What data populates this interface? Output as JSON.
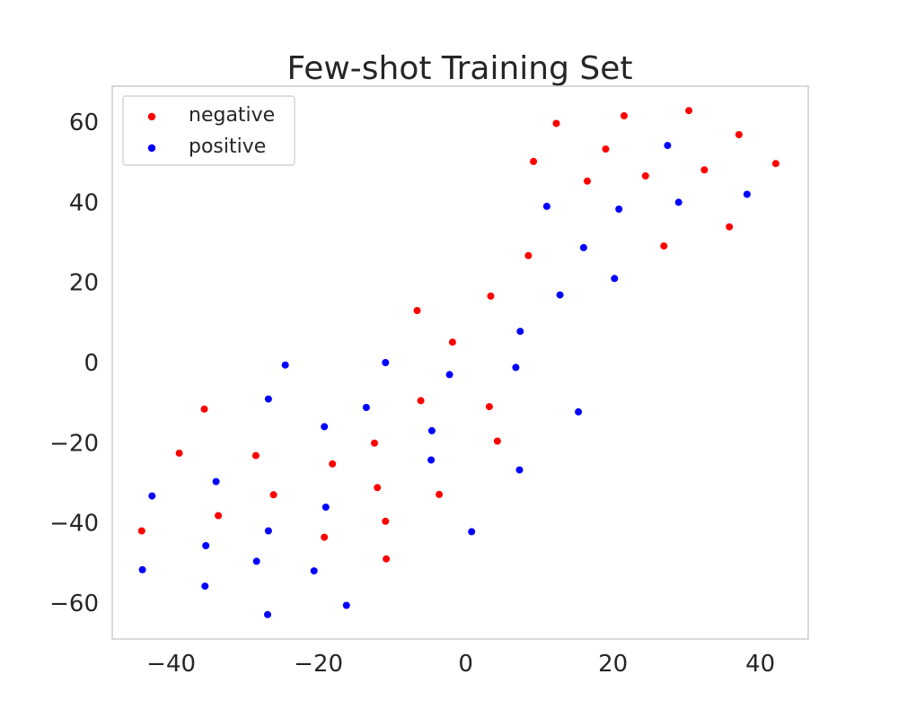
{
  "chart_data": {
    "type": "scatter",
    "title": "Few-shot Training Set",
    "xlabel": "",
    "ylabel": "",
    "xlim": [
      -48,
      46.5
    ],
    "ylim": [
      -69,
      69
    ],
    "xticks": [
      -40,
      -20,
      0,
      20,
      40
    ],
    "yticks": [
      -60,
      -40,
      -20,
      0,
      20,
      40,
      60
    ],
    "xtick_labels": [
      "−40",
      "−20",
      "0",
      "20",
      "40"
    ],
    "ytick_labels": [
      "−60",
      "−40",
      "−20",
      "0",
      "20",
      "40",
      "60"
    ],
    "grid": false,
    "legend_position": "top-left",
    "series": [
      {
        "name": "negative",
        "color": "#ff0000",
        "points": [
          [
            12.3,
            59.7
          ],
          [
            21.5,
            61.6
          ],
          [
            30.3,
            62.9
          ],
          [
            37.1,
            56.9
          ],
          [
            9.2,
            50.2
          ],
          [
            19.0,
            53.3
          ],
          [
            16.5,
            45.3
          ],
          [
            24.4,
            46.6
          ],
          [
            32.4,
            48.1
          ],
          [
            42.1,
            49.7
          ],
          [
            35.8,
            33.9
          ],
          [
            26.9,
            29.1
          ],
          [
            8.5,
            26.7
          ],
          [
            3.4,
            16.6
          ],
          [
            -6.6,
            13.0
          ],
          [
            -1.8,
            5.1
          ],
          [
            -35.5,
            -11.6
          ],
          [
            -6.1,
            -9.5
          ],
          [
            3.2,
            -11.0
          ],
          [
            -12.4,
            -20.1
          ],
          [
            4.3,
            -19.6
          ],
          [
            -38.9,
            -22.6
          ],
          [
            -28.5,
            -23.2
          ],
          [
            -18.1,
            -25.3
          ],
          [
            -12.0,
            -31.2
          ],
          [
            -26.1,
            -33.0
          ],
          [
            -3.6,
            -32.9
          ],
          [
            -33.6,
            -38.2
          ],
          [
            -10.9,
            -39.6
          ],
          [
            -44.0,
            -42.0
          ],
          [
            -19.2,
            -43.6
          ],
          [
            -10.8,
            -49.0
          ]
        ]
      },
      {
        "name": "positive",
        "color": "#0000ff",
        "points": [
          [
            27.4,
            54.2
          ],
          [
            11.0,
            39.0
          ],
          [
            20.8,
            38.3
          ],
          [
            28.9,
            40.0
          ],
          [
            38.2,
            42.0
          ],
          [
            16.0,
            28.7
          ],
          [
            20.2,
            21.0
          ],
          [
            12.8,
            16.9
          ],
          [
            7.4,
            7.8
          ],
          [
            -24.5,
            -0.6
          ],
          [
            -10.9,
            0.0
          ],
          [
            -2.2,
            -3.0
          ],
          [
            6.8,
            -1.2
          ],
          [
            -26.8,
            -9.1
          ],
          [
            -13.5,
            -11.2
          ],
          [
            15.3,
            -12.3
          ],
          [
            -19.2,
            -16.0
          ],
          [
            -4.6,
            -17.0
          ],
          [
            -33.9,
            -29.7
          ],
          [
            -4.7,
            -24.3
          ],
          [
            7.3,
            -26.8
          ],
          [
            -42.6,
            -33.3
          ],
          [
            -19.0,
            -36.1
          ],
          [
            -26.8,
            -42.0
          ],
          [
            0.8,
            -42.2
          ],
          [
            -35.3,
            -45.7
          ],
          [
            -28.4,
            -49.6
          ],
          [
            -43.9,
            -51.7
          ],
          [
            -20.6,
            -52.0
          ],
          [
            -35.4,
            -55.8
          ],
          [
            -16.2,
            -60.6
          ],
          [
            -26.9,
            -62.9
          ]
        ]
      }
    ]
  }
}
